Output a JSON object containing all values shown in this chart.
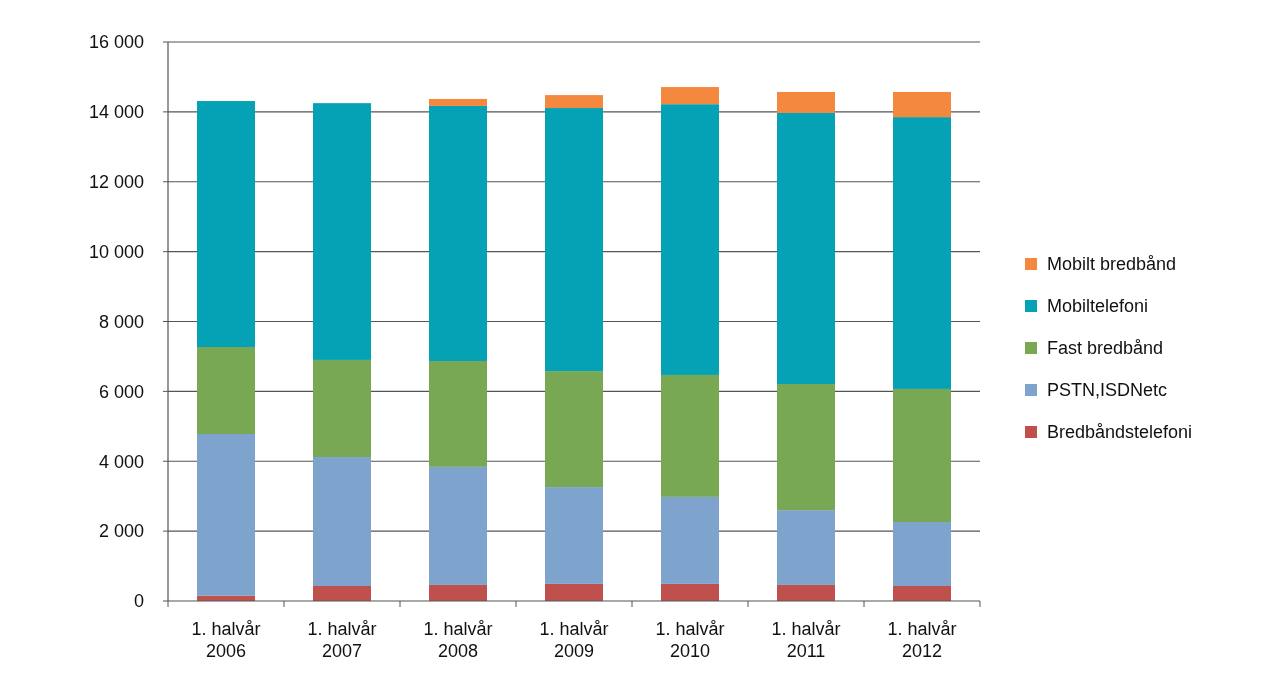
{
  "chart_data": {
    "type": "bar",
    "stacked": true,
    "categories": [
      "1. halvår 2006",
      "1. halvår 2007",
      "1. halvår 2008",
      "1. halvår 2009",
      "1. halvår 2010",
      "1. halvår 2011",
      "1. halvår 2012"
    ],
    "series": [
      {
        "name": "Bredbåndstelefoni",
        "color": "#c0504d",
        "values": [
          150,
          430,
          460,
          490,
          490,
          460,
          430
        ]
      },
      {
        "name": "PSTN,ISDNetc",
        "color": "#7ea3cc",
        "values": [
          4630,
          3690,
          3380,
          2770,
          2490,
          2140,
          1830
        ]
      },
      {
        "name": "Fast bredbånd",
        "color": "#78a854",
        "values": [
          2490,
          2780,
          3030,
          3320,
          3490,
          3610,
          3810
        ]
      },
      {
        "name": "Mobiltelefoni",
        "color": "#05a2b5",
        "values": [
          7040,
          7350,
          7300,
          7530,
          7750,
          7760,
          7780
        ]
      },
      {
        "name": "Mobilt bredbånd",
        "color": "#f4883e",
        "values": [
          0,
          0,
          200,
          370,
          490,
          600,
          720
        ]
      }
    ],
    "ylim": [
      0,
      16000
    ],
    "yticks": [
      0,
      {
        "value": 2000,
        "label": "2 000"
      },
      {
        "value": 4000,
        "label": "4 000"
      },
      {
        "value": 6000,
        "label": "6 000"
      },
      {
        "value": 8000,
        "label": "8 000"
      },
      {
        "value": 10000,
        "label": "10 000"
      },
      {
        "value": 12000,
        "label": "12 000"
      },
      {
        "value": 14000,
        "label": "14 000"
      },
      {
        "value": 16000,
        "label": "16 000"
      }
    ],
    "grid": "y",
    "legend": "right"
  }
}
